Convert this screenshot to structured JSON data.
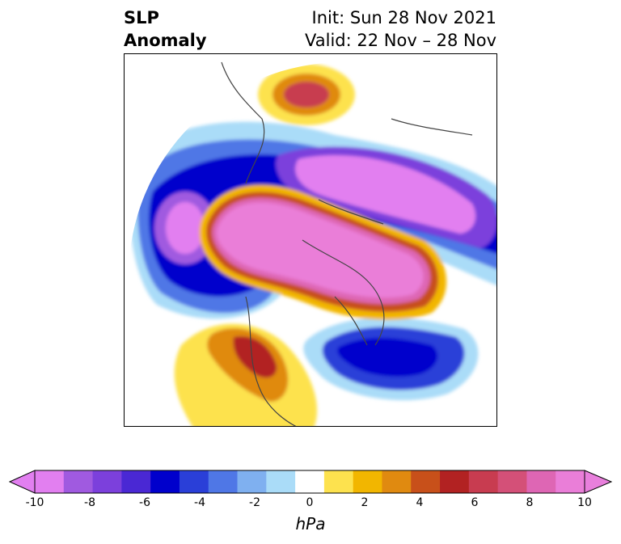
{
  "title": {
    "left_line1": "SLP",
    "left_line2": "Anomaly",
    "right_line1": "Init: Sun 28 Nov 2021",
    "right_line2": "Valid: 22 Nov – 28 Nov"
  },
  "colorbar": {
    "unit": "hPa",
    "tick_labels": [
      "-10",
      "-8",
      "-6",
      "-4",
      "-2",
      "0",
      "2",
      "4",
      "6",
      "8",
      "10"
    ],
    "levels": [
      -10,
      -9,
      -8,
      -7,
      -6,
      -5,
      -4,
      -3,
      -2,
      -1,
      1,
      2,
      3,
      4,
      5,
      6,
      7,
      8,
      9,
      10
    ],
    "colors": [
      "#e27ff0",
      "#a05ae0",
      "#7c40dc",
      "#4a28d4",
      "#0000cc",
      "#2a3fd8",
      "#4f77e6",
      "#7fb0f0",
      "#aadcf8",
      "#ffffff",
      "#fde24e",
      "#f2b600",
      "#e08a10",
      "#c8501a",
      "#b22222",
      "#c83c50",
      "#d45078",
      "#de66b4",
      "#ea7ed8"
    ],
    "extend_min_color": "#e27ff0",
    "extend_max_color": "#e87fdc"
  }
}
